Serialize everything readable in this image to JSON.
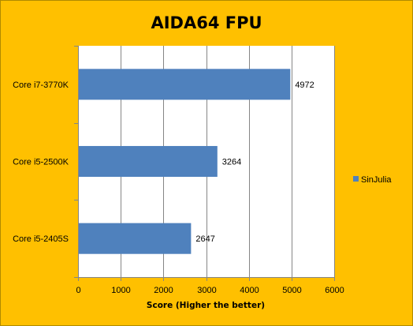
{
  "chart_data": {
    "type": "bar",
    "orientation": "horizontal",
    "title": "AIDA64 FPU",
    "xlabel": "Score (Higher the better)",
    "ylabel": "",
    "categories": [
      "Core i7-3770K",
      "Core i5-2500K",
      "Core i5-2405S"
    ],
    "series": [
      {
        "name": "SinJulia",
        "values": [
          4972,
          3264,
          2647
        ],
        "color": "#4f81bd"
      }
    ],
    "xlim": [
      0,
      6000
    ],
    "xticks": [
      0,
      1000,
      2000,
      3000,
      4000,
      5000,
      6000
    ],
    "grid": true,
    "legend_position": "right",
    "data_labels": true,
    "background_color": "#ffc000",
    "plot_background_color": "#ffffff",
    "gridline_color": "#868686"
  }
}
